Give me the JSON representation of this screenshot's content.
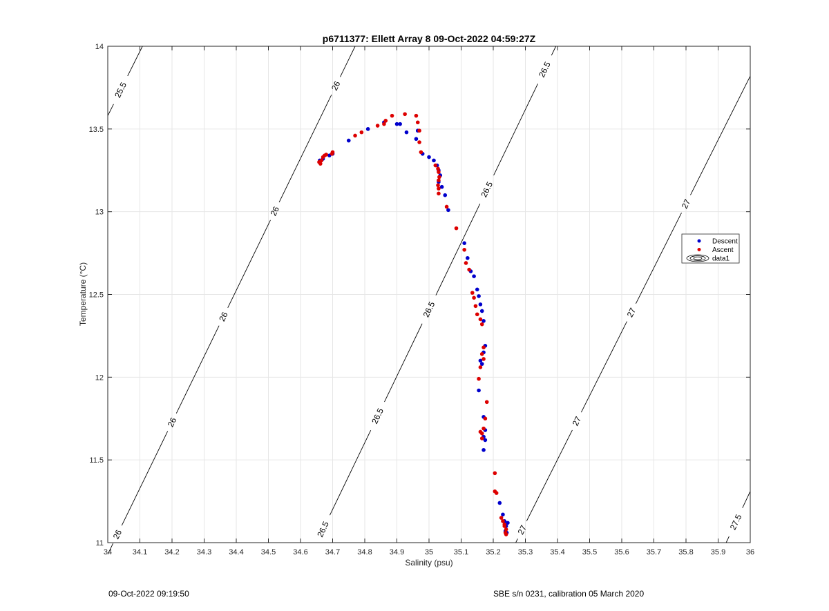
{
  "chart_data": {
    "type": "scatter",
    "title": "p6711377: Ellett Array 8 09-Oct-2022 04:59:27Z",
    "xlabel": "Salinity (psu)",
    "ylabel": "Temperature (°C)",
    "xlim": [
      34,
      36
    ],
    "ylim": [
      11,
      14
    ],
    "xticks": [
      34,
      34.1,
      34.2,
      34.3,
      34.4,
      34.5,
      34.6,
      34.7,
      34.8,
      34.9,
      35,
      35.1,
      35.2,
      35.3,
      35.4,
      35.5,
      35.6,
      35.7,
      35.8,
      35.9,
      36
    ],
    "xtick_labels": [
      "34",
      "34.1",
      "34.2",
      "34.3",
      "34.4",
      "34.5",
      "34.6",
      "34.7",
      "34.8",
      "34.9",
      "35",
      "35.1",
      "35.2",
      "35.3",
      "35.4",
      "35.5",
      "35.6",
      "35.7",
      "35.8",
      "35.9",
      "36"
    ],
    "yticks": [
      11,
      11.5,
      12,
      12.5,
      13,
      13.5,
      14
    ],
    "ytick_labels": [
      "11",
      "11.5",
      "12",
      "12.5",
      "13",
      "13.5",
      "14"
    ],
    "grid": true,
    "legend_position": "right",
    "legend": [
      {
        "label": "Descent",
        "color": "#0000cc",
        "marker": "dot"
      },
      {
        "label": "Ascent",
        "color": "#dd0000",
        "marker": "dot"
      },
      {
        "label": "data1",
        "color": "#000000",
        "marker": "contour"
      }
    ],
    "series": [
      {
        "name": "Descent",
        "color": "#0000cc",
        "points": [
          [
            34.66,
            13.31
          ],
          [
            34.665,
            13.31
          ],
          [
            34.67,
            13.32
          ],
          [
            34.69,
            13.34
          ],
          [
            34.7,
            13.35
          ],
          [
            34.75,
            13.43
          ],
          [
            34.81,
            13.5
          ],
          [
            34.86,
            13.54
          ],
          [
            34.9,
            13.53
          ],
          [
            34.91,
            13.53
          ],
          [
            34.93,
            13.48
          ],
          [
            34.96,
            13.44
          ],
          [
            34.965,
            13.49
          ],
          [
            34.98,
            13.35
          ],
          [
            35.0,
            13.33
          ],
          [
            35.015,
            13.31
          ],
          [
            35.025,
            13.28
          ],
          [
            35.03,
            13.25
          ],
          [
            35.035,
            13.22
          ],
          [
            35.03,
            13.18
          ],
          [
            35.04,
            13.15
          ],
          [
            35.05,
            13.1
          ],
          [
            35.06,
            13.01
          ],
          [
            35.11,
            12.81
          ],
          [
            35.12,
            12.72
          ],
          [
            35.13,
            12.64
          ],
          [
            35.14,
            12.61
          ],
          [
            35.15,
            12.53
          ],
          [
            35.155,
            12.49
          ],
          [
            35.16,
            12.44
          ],
          [
            35.165,
            12.4
          ],
          [
            35.17,
            12.34
          ],
          [
            35.175,
            12.19
          ],
          [
            35.17,
            12.15
          ],
          [
            35.16,
            12.1
          ],
          [
            35.165,
            12.08
          ],
          [
            35.155,
            11.92
          ],
          [
            35.17,
            11.76
          ],
          [
            35.175,
            11.68
          ],
          [
            35.17,
            11.64
          ],
          [
            35.175,
            11.62
          ],
          [
            35.17,
            11.56
          ],
          [
            35.22,
            11.24
          ],
          [
            35.23,
            11.17
          ],
          [
            35.235,
            11.13
          ],
          [
            35.245,
            11.12
          ],
          [
            35.24,
            11.1
          ],
          [
            35.238,
            11.07
          ],
          [
            35.242,
            11.06
          ]
        ]
      },
      {
        "name": "Ascent",
        "color": "#dd0000",
        "points": [
          [
            34.658,
            13.3
          ],
          [
            34.662,
            13.29
          ],
          [
            34.665,
            13.31
          ],
          [
            34.67,
            13.33
          ],
          [
            34.675,
            13.34
          ],
          [
            34.68,
            13.345
          ],
          [
            34.7,
            13.36
          ],
          [
            34.698,
            13.35
          ],
          [
            34.77,
            13.46
          ],
          [
            34.79,
            13.48
          ],
          [
            34.84,
            13.52
          ],
          [
            34.86,
            13.53
          ],
          [
            34.865,
            13.55
          ],
          [
            34.885,
            13.58
          ],
          [
            34.925,
            13.59
          ],
          [
            34.96,
            13.58
          ],
          [
            34.965,
            13.54
          ],
          [
            34.97,
            13.49
          ],
          [
            34.97,
            13.42
          ],
          [
            34.975,
            13.36
          ],
          [
            35.02,
            13.28
          ],
          [
            35.028,
            13.26
          ],
          [
            35.03,
            13.24
          ],
          [
            35.032,
            13.21
          ],
          [
            35.03,
            13.19
          ],
          [
            35.028,
            13.16
          ],
          [
            35.03,
            13.14
          ],
          [
            35.03,
            13.11
          ],
          [
            35.055,
            13.03
          ],
          [
            35.085,
            12.9
          ],
          [
            35.11,
            12.77
          ],
          [
            35.115,
            12.69
          ],
          [
            35.125,
            12.65
          ],
          [
            35.135,
            12.51
          ],
          [
            35.14,
            12.48
          ],
          [
            35.145,
            12.43
          ],
          [
            35.15,
            12.38
          ],
          [
            35.16,
            12.35
          ],
          [
            35.165,
            12.32
          ],
          [
            35.17,
            12.18
          ],
          [
            35.165,
            12.14
          ],
          [
            35.17,
            12.11
          ],
          [
            35.16,
            12.06
          ],
          [
            35.155,
            11.99
          ],
          [
            35.18,
            11.85
          ],
          [
            35.175,
            11.75
          ],
          [
            35.17,
            11.69
          ],
          [
            35.165,
            11.66
          ],
          [
            35.16,
            11.67
          ],
          [
            35.165,
            11.63
          ],
          [
            35.205,
            11.42
          ],
          [
            35.205,
            11.31
          ],
          [
            35.21,
            11.3
          ],
          [
            35.225,
            11.15
          ],
          [
            35.23,
            11.13
          ],
          [
            35.235,
            11.1
          ],
          [
            35.24,
            11.08
          ],
          [
            35.238,
            11.06
          ],
          [
            35.24,
            11.05
          ],
          [
            35.235,
            11.11
          ]
        ]
      }
    ],
    "isopycnals": [
      {
        "slope": 3.87,
        "points": [
          [
            34.0,
            13.58
          ],
          [
            34.108,
            14.0
          ]
        ],
        "labels": [
          {
            "text": "25.5",
            "s": 34.04
          }
        ]
      },
      {
        "slope": 3.95,
        "points": [
          [
            34.0,
            10.93
          ],
          [
            34.77,
            14.0
          ]
        ],
        "labels": [
          {
            "text": "26",
            "s": 34.03
          },
          {
            "text": "26",
            "s": 34.2
          },
          {
            "text": "26",
            "s": 34.36
          },
          {
            "text": "26",
            "s": 34.52
          },
          {
            "text": "26",
            "s": 34.71
          }
        ]
      },
      {
        "slope": 4.1,
        "points": [
          [
            34.65,
            11.0
          ],
          [
            35.395,
            14.0
          ]
        ],
        "labels": [
          {
            "text": "26.5",
            "s": 34.67
          },
          {
            "text": "26.5",
            "s": 34.84
          },
          {
            "text": "26.5",
            "s": 35.0
          },
          {
            "text": "26.5",
            "s": 35.18
          },
          {
            "text": "26.5",
            "s": 35.36
          }
        ]
      },
      {
        "slope": 4.13,
        "points": [
          [
            35.27,
            11.0
          ],
          [
            36.0,
            13.82
          ]
        ],
        "labels": [
          {
            "text": "27",
            "s": 35.29
          },
          {
            "text": "27",
            "s": 35.46
          },
          {
            "text": "27",
            "s": 35.63
          },
          {
            "text": "27",
            "s": 35.8
          }
        ]
      },
      {
        "slope": 4.25,
        "points": [
          [
            35.925,
            11.0
          ],
          [
            36.0,
            11.31
          ]
        ],
        "labels": [
          {
            "text": "27.5",
            "s": 35.955
          }
        ]
      }
    ]
  },
  "footer": {
    "timestamp": "09-Oct-2022 09:19:50",
    "instrument": "SBE s/n 0231, calibration 05 March 2020"
  }
}
